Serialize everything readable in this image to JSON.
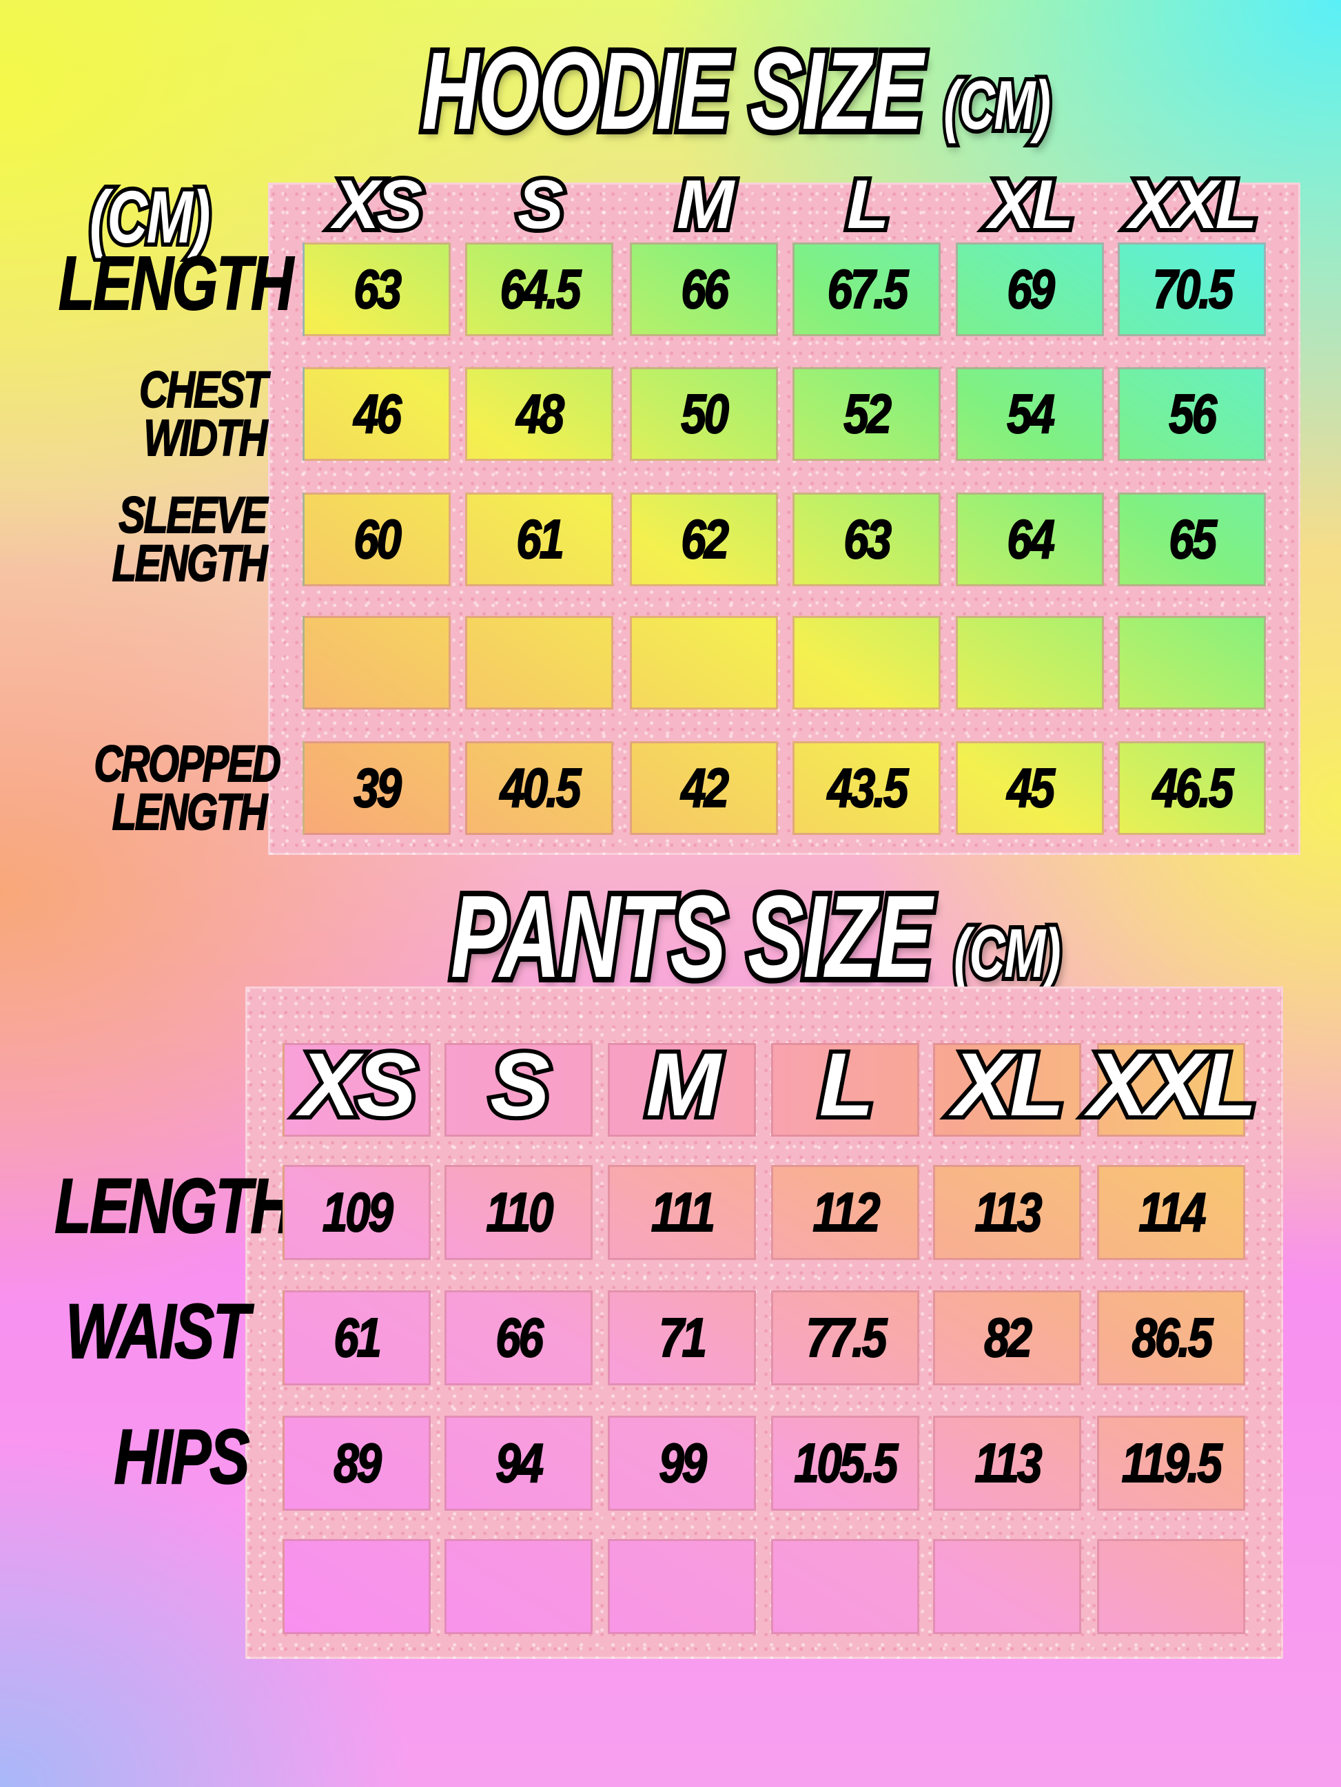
{
  "hoodie": {
    "title": "HOODIE SIZE",
    "unit": "(CM)",
    "corner_unit": "(CM)",
    "sizes": [
      "XS",
      "S",
      "M",
      "L",
      "XL",
      "XXL"
    ],
    "rows": [
      {
        "label": "LENGTH",
        "values": [
          "63",
          "64.5",
          "66",
          "67.5",
          "69",
          "70.5"
        ]
      },
      {
        "label": "CHEST WIDTH",
        "values": [
          "46",
          "48",
          "50",
          "52",
          "54",
          "56"
        ]
      },
      {
        "label": "SLEEVE LENGTH",
        "values": [
          "60",
          "61",
          "62",
          "63",
          "64",
          "65"
        ]
      },
      {
        "label": "",
        "values": [
          "",
          "",
          "",
          "",
          "",
          ""
        ]
      },
      {
        "label": "CROPPED LENGTH",
        "values": [
          "39",
          "40.5",
          "42",
          "43.5",
          "45",
          "46.5"
        ]
      }
    ]
  },
  "pants": {
    "title": "PANTS SIZE",
    "unit": "(CM)",
    "sizes": [
      "XS",
      "S",
      "M",
      "L",
      "XL",
      "XXL"
    ],
    "rows": [
      {
        "label": "LENGTH",
        "values": [
          "109",
          "110",
          "111",
          "112",
          "113",
          "114"
        ]
      },
      {
        "label": "WAIST",
        "values": [
          "61",
          "66",
          "71",
          "77.5",
          "82",
          "86.5"
        ]
      },
      {
        "label": "HIPS",
        "values": [
          "89",
          "94",
          "99",
          "105.5",
          "113",
          "119.5"
        ]
      },
      {
        "label": "",
        "values": [
          "",
          "",
          "",
          "",
          "",
          ""
        ]
      }
    ]
  },
  "colors": {
    "panel": "#f6b8c8",
    "hoodie_cells": [
      "#f8a878",
      "#f4f050",
      "#80f080",
      "#50f0f8"
    ],
    "pants_cells": [
      "#f890f0",
      "#f8a0d8",
      "#f8b090",
      "#f8d060"
    ]
  }
}
